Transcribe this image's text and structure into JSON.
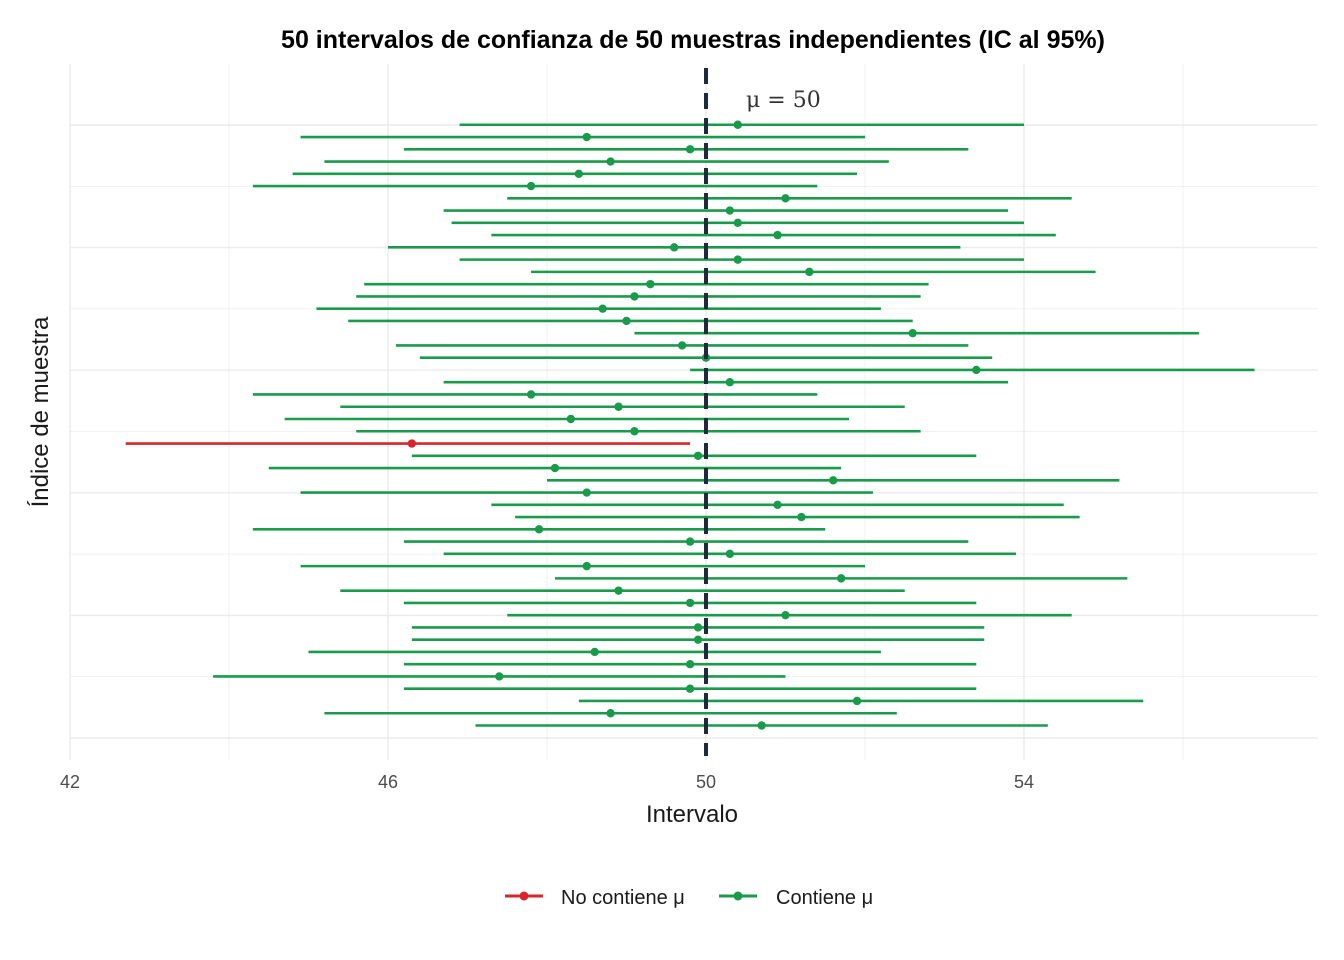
{
  "chart_data": {
    "type": "interval",
    "title": "50 intervalos de confianza de 50 muestras independientes (IC al 95%)",
    "xlabel": "Intervalo",
    "ylabel": "Índice de muestra",
    "xlim": [
      42,
      57.5
    ],
    "x_ticks": [
      "42",
      "46",
      "50",
      "54"
    ],
    "ylim": [
      0,
      50
    ],
    "grid": true,
    "reference_line": {
      "value": 50,
      "label": "μ = 50",
      "color": "#1f2a3a"
    },
    "colors": {
      "no_contiene": "#d7262b",
      "contiene": "#1a9b4b"
    },
    "legend": {
      "position": "bottom",
      "items": [
        {
          "key": "no_contiene",
          "label": "No contiene μ"
        },
        {
          "key": "contiene",
          "label": "Contiene μ"
        }
      ]
    },
    "intervals": [
      {
        "sample": 1,
        "lower": 47.1,
        "mean": 50.7,
        "upper": 54.3,
        "contains_mu": true
      },
      {
        "sample": 2,
        "lower": 45.2,
        "mean": 48.8,
        "upper": 52.4,
        "contains_mu": true
      },
      {
        "sample": 3,
        "lower": 48.4,
        "mean": 51.9,
        "upper": 55.5,
        "contains_mu": true
      },
      {
        "sample": 4,
        "lower": 46.2,
        "mean": 49.8,
        "upper": 53.4,
        "contains_mu": true
      },
      {
        "sample": 5,
        "lower": 43.8,
        "mean": 47.4,
        "upper": 51.0,
        "contains_mu": true
      },
      {
        "sample": 6,
        "lower": 46.2,
        "mean": 49.8,
        "upper": 53.4,
        "contains_mu": true
      },
      {
        "sample": 7,
        "lower": 45.0,
        "mean": 48.6,
        "upper": 52.2,
        "contains_mu": true
      },
      {
        "sample": 8,
        "lower": 46.3,
        "mean": 49.9,
        "upper": 53.5,
        "contains_mu": true
      },
      {
        "sample": 9,
        "lower": 46.3,
        "mean": 49.9,
        "upper": 53.5,
        "contains_mu": true
      },
      {
        "sample": 10,
        "lower": 47.5,
        "mean": 51.0,
        "upper": 54.6,
        "contains_mu": true
      },
      {
        "sample": 11,
        "lower": 46.2,
        "mean": 49.8,
        "upper": 53.4,
        "contains_mu": true
      },
      {
        "sample": 12,
        "lower": 45.4,
        "mean": 48.9,
        "upper": 52.5,
        "contains_mu": true
      },
      {
        "sample": 13,
        "lower": 48.1,
        "mean": 51.7,
        "upper": 55.3,
        "contains_mu": true
      },
      {
        "sample": 14,
        "lower": 44.9,
        "mean": 48.5,
        "upper": 52.0,
        "contains_mu": true
      },
      {
        "sample": 15,
        "lower": 46.7,
        "mean": 50.3,
        "upper": 53.9,
        "contains_mu": true
      },
      {
        "sample": 16,
        "lower": 46.2,
        "mean": 49.8,
        "upper": 53.3,
        "contains_mu": true
      },
      {
        "sample": 17,
        "lower": 44.3,
        "mean": 47.9,
        "upper": 51.5,
        "contains_mu": true
      },
      {
        "sample": 18,
        "lower": 47.6,
        "mean": 51.2,
        "upper": 54.7,
        "contains_mu": true
      },
      {
        "sample": 19,
        "lower": 47.3,
        "mean": 50.9,
        "upper": 54.5,
        "contains_mu": true
      },
      {
        "sample": 20,
        "lower": 44.9,
        "mean": 48.5,
        "upper": 52.1,
        "contains_mu": true
      },
      {
        "sample": 21,
        "lower": 48.0,
        "mean": 51.6,
        "upper": 55.2,
        "contains_mu": true
      },
      {
        "sample": 22,
        "lower": 44.5,
        "mean": 48.1,
        "upper": 51.7,
        "contains_mu": true
      },
      {
        "sample": 23,
        "lower": 46.3,
        "mean": 49.9,
        "upper": 53.4,
        "contains_mu": true
      },
      {
        "sample": 24,
        "lower": 42.7,
        "mean": 46.3,
        "upper": 49.8,
        "contains_mu": false
      },
      {
        "sample": 25,
        "lower": 45.6,
        "mean": 49.1,
        "upper": 52.7,
        "contains_mu": true
      },
      {
        "sample": 26,
        "lower": 44.7,
        "mean": 48.3,
        "upper": 51.8,
        "contains_mu": true
      },
      {
        "sample": 27,
        "lower": 45.4,
        "mean": 48.9,
        "upper": 52.5,
        "contains_mu": true
      },
      {
        "sample": 28,
        "lower": 44.3,
        "mean": 47.8,
        "upper": 51.4,
        "contains_mu": true
      },
      {
        "sample": 29,
        "lower": 46.7,
        "mean": 50.3,
        "upper": 53.8,
        "contains_mu": true
      },
      {
        "sample": 30,
        "lower": 49.8,
        "mean": 53.4,
        "upper": 56.9,
        "contains_mu": true
      },
      {
        "sample": 31,
        "lower": 46.4,
        "mean": 50.0,
        "upper": 53.6,
        "contains_mu": true
      },
      {
        "sample": 32,
        "lower": 46.1,
        "mean": 49.7,
        "upper": 53.3,
        "contains_mu": true
      },
      {
        "sample": 33,
        "lower": 49.1,
        "mean": 52.6,
        "upper": 56.2,
        "contains_mu": true
      },
      {
        "sample": 34,
        "lower": 45.5,
        "mean": 49.0,
        "upper": 52.6,
        "contains_mu": true
      },
      {
        "sample": 35,
        "lower": 45.1,
        "mean": 48.7,
        "upper": 52.2,
        "contains_mu": true
      },
      {
        "sample": 36,
        "lower": 45.6,
        "mean": 49.1,
        "upper": 52.7,
        "contains_mu": true
      },
      {
        "sample": 37,
        "lower": 45.7,
        "mean": 49.3,
        "upper": 52.8,
        "contains_mu": true
      },
      {
        "sample": 38,
        "lower": 47.8,
        "mean": 51.3,
        "upper": 54.9,
        "contains_mu": true
      },
      {
        "sample": 39,
        "lower": 46.9,
        "mean": 50.4,
        "upper": 54.0,
        "contains_mu": true
      },
      {
        "sample": 40,
        "lower": 46.0,
        "mean": 49.6,
        "upper": 53.2,
        "contains_mu": true
      },
      {
        "sample": 41,
        "lower": 47.3,
        "mean": 50.9,
        "upper": 54.4,
        "contains_mu": true
      },
      {
        "sample": 42,
        "lower": 46.8,
        "mean": 50.4,
        "upper": 54.0,
        "contains_mu": true
      },
      {
        "sample": 43,
        "lower": 46.7,
        "mean": 50.3,
        "upper": 53.8,
        "contains_mu": true
      },
      {
        "sample": 44,
        "lower": 47.5,
        "mean": 51.0,
        "upper": 54.6,
        "contains_mu": true
      },
      {
        "sample": 45,
        "lower": 44.3,
        "mean": 47.8,
        "upper": 51.4,
        "contains_mu": true
      },
      {
        "sample": 46,
        "lower": 44.8,
        "mean": 48.4,
        "upper": 51.9,
        "contains_mu": true
      },
      {
        "sample": 47,
        "lower": 45.2,
        "mean": 48.8,
        "upper": 52.3,
        "contains_mu": true
      },
      {
        "sample": 48,
        "lower": 46.2,
        "mean": 49.8,
        "upper": 53.3,
        "contains_mu": true
      },
      {
        "sample": 49,
        "lower": 44.9,
        "mean": 48.5,
        "upper": 52.0,
        "contains_mu": true
      },
      {
        "sample": 50,
        "lower": 46.9,
        "mean": 50.4,
        "upper": 54.0,
        "contains_mu": true
      }
    ]
  }
}
